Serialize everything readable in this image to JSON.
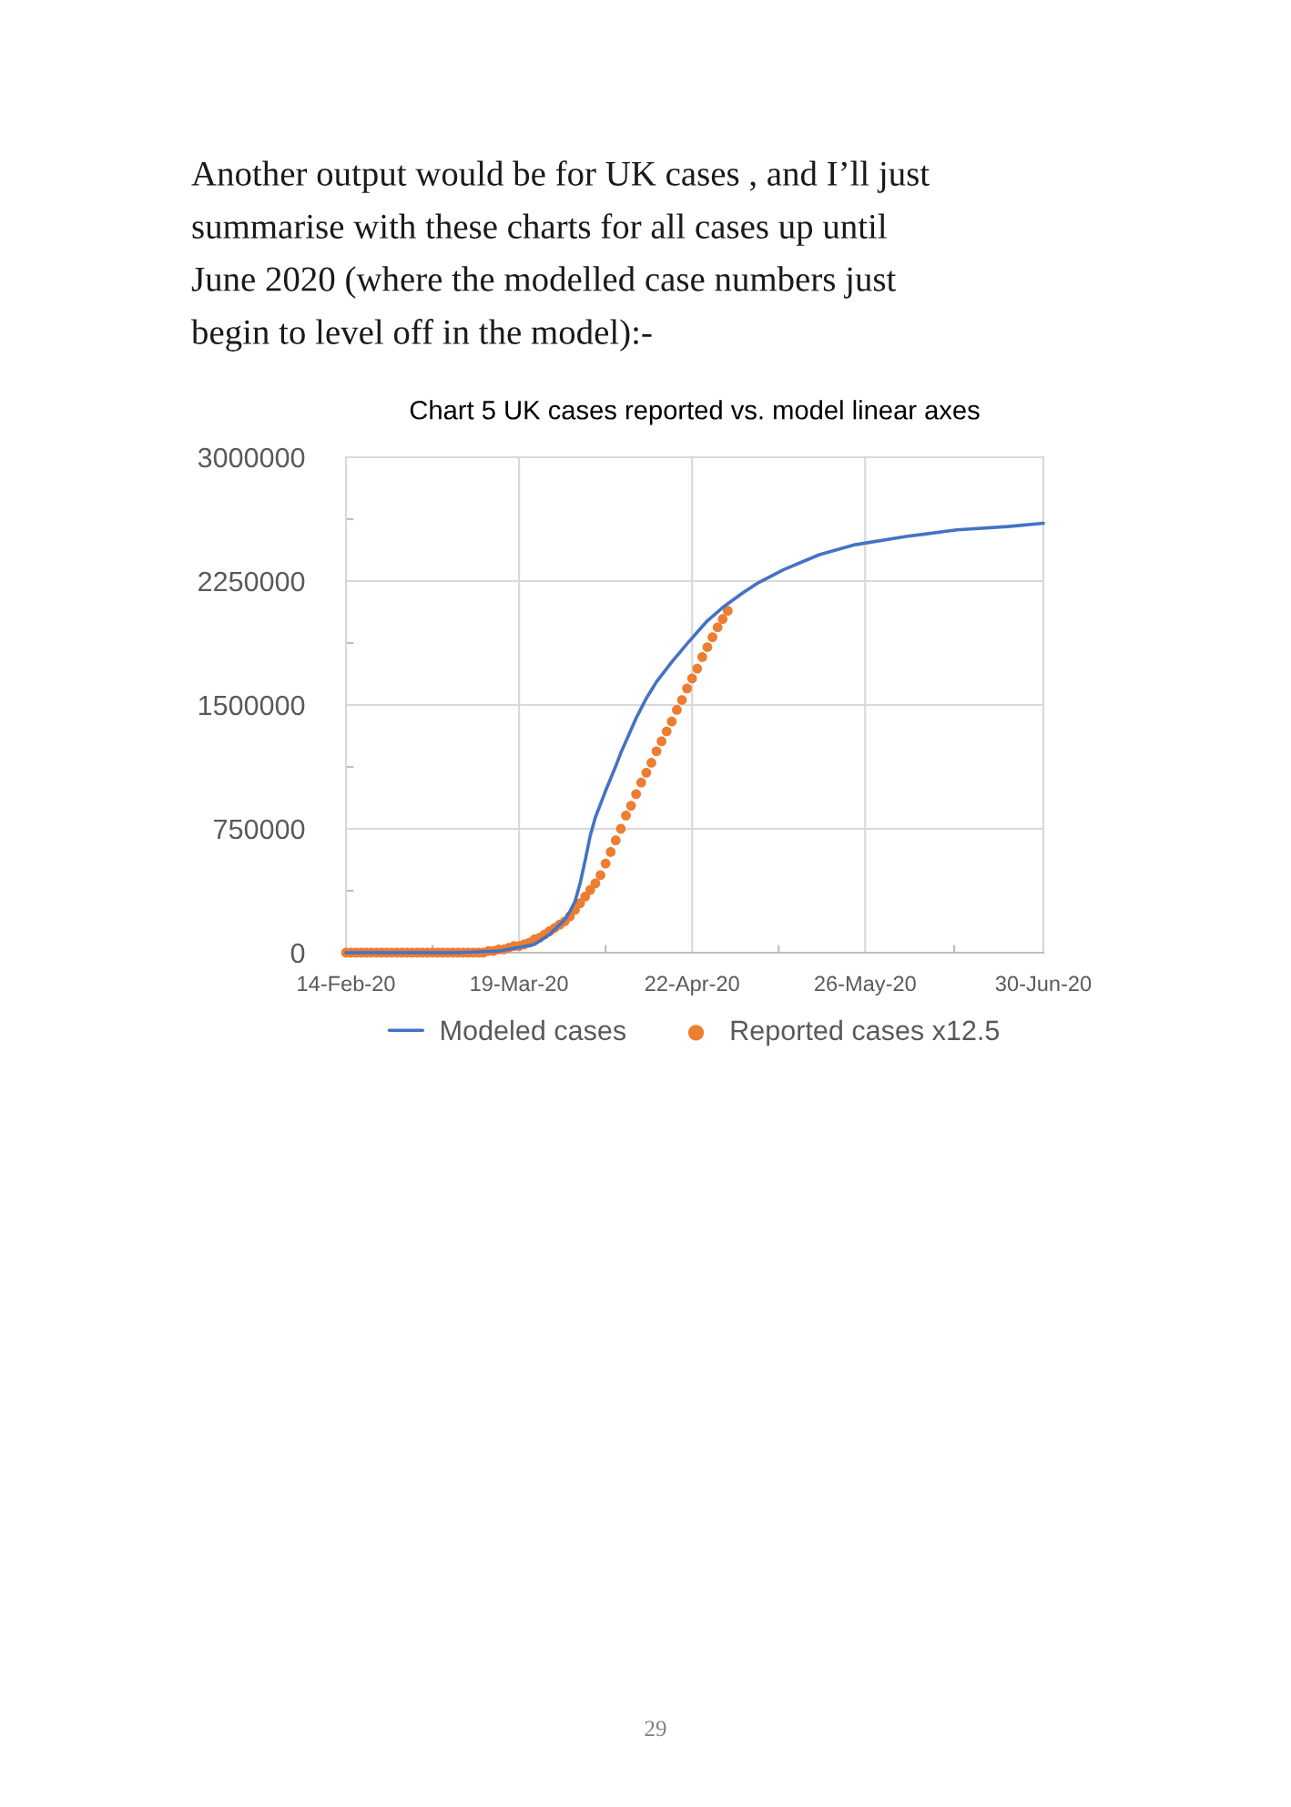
{
  "chart_data": {
    "type": "line",
    "title": "Chart 5 UK cases reported vs. model linear axes",
    "annotations": [
      "Another output would be for UK cases , and I’ll just",
      "summarise with these charts for all cases up until",
      "June 2020 (where the modelled case numbers just",
      "begin to level off in the model):-",
      "29"
    ],
    "xlim": [
      "2020-02-14",
      "2020-06-30"
    ],
    "xticks": [
      {
        "value": "2020-02-14",
        "label": "14-Feb-20"
      },
      {
        "value": "2020-03-19",
        "label": "19-Mar-20"
      },
      {
        "value": "2020-04-22",
        "label": "22-Apr-20"
      },
      {
        "value": "2020-05-26",
        "label": "26-May-20"
      },
      {
        "value": "2020-06-30",
        "label": "30-Jun-20"
      }
    ],
    "ylim": [
      0,
      3000000
    ],
    "yticks": [
      0,
      750000,
      1500000,
      2250000,
      3000000
    ],
    "grid": true,
    "legend": "bottom",
    "line_style": "solid",
    "series": [
      {
        "name": "Modeled cases",
        "color": "#4472c4",
        "x": [
          "2020-02-14",
          "2020-03-07",
          "2020-03-15",
          "2020-03-22",
          "2020-03-25",
          "2020-03-28",
          "2020-03-29",
          "2020-03-30",
          "2020-03-31",
          "2020-04-01",
          "2020-04-02",
          "2020-04-03",
          "2020-04-04",
          "2020-04-05",
          "2020-04-07",
          "2020-04-08",
          "2020-04-09",
          "2020-04-10",
          "2020-04-11",
          "2020-04-12",
          "2020-04-13",
          "2020-04-14",
          "2020-04-15",
          "2020-04-16",
          "2020-04-18",
          "2020-04-21",
          "2020-04-25",
          "2020-04-28",
          "2020-05-02",
          "2020-05-05",
          "2020-05-10",
          "2020-05-17",
          "2020-05-24",
          "2020-06-03",
          "2020-06-13",
          "2020-06-23",
          "2020-06-30"
        ],
        "values": [
          0,
          0,
          10000,
          50000,
          110000,
          200000,
          250000,
          310000,
          420000,
          560000,
          710000,
          820000,
          900000,
          980000,
          1130000,
          1210000,
          1280000,
          1350000,
          1420000,
          1480000,
          1540000,
          1590000,
          1640000,
          1680000,
          1760000,
          1870000,
          2010000,
          2090000,
          2180000,
          2240000,
          2320000,
          2410000,
          2470000,
          2520000,
          2560000,
          2580000,
          2600000
        ]
      },
      {
        "name": "Reported cases x12.5",
        "type": "scatter",
        "color": "#ed7d31",
        "marker": "circle",
        "x": [
          "2020-02-14",
          "2020-02-15",
          "2020-02-16",
          "2020-02-17",
          "2020-02-18",
          "2020-02-19",
          "2020-02-20",
          "2020-02-21",
          "2020-02-22",
          "2020-02-23",
          "2020-02-24",
          "2020-02-25",
          "2020-02-26",
          "2020-02-27",
          "2020-02-28",
          "2020-02-29",
          "2020-03-01",
          "2020-03-02",
          "2020-03-03",
          "2020-03-04",
          "2020-03-05",
          "2020-03-06",
          "2020-03-07",
          "2020-03-08",
          "2020-03-09",
          "2020-03-10",
          "2020-03-11",
          "2020-03-12",
          "2020-03-13",
          "2020-03-14",
          "2020-03-15",
          "2020-03-16",
          "2020-03-17",
          "2020-03-18",
          "2020-03-19",
          "2020-03-20",
          "2020-03-21",
          "2020-03-22",
          "2020-03-23",
          "2020-03-24",
          "2020-03-25",
          "2020-03-26",
          "2020-03-27",
          "2020-03-28",
          "2020-03-29",
          "2020-03-30",
          "2020-03-31",
          "2020-04-01",
          "2020-04-02",
          "2020-04-03",
          "2020-04-04",
          "2020-04-05",
          "2020-04-06",
          "2020-04-07",
          "2020-04-08",
          "2020-04-09",
          "2020-04-10",
          "2020-04-11",
          "2020-04-12",
          "2020-04-13",
          "2020-04-14",
          "2020-04-15",
          "2020-04-16",
          "2020-04-17",
          "2020-04-18",
          "2020-04-19",
          "2020-04-20",
          "2020-04-21",
          "2020-04-22",
          "2020-04-23",
          "2020-04-24",
          "2020-04-25",
          "2020-04-26",
          "2020-04-27",
          "2020-04-28",
          "2020-04-29"
        ],
        "values": [
          0,
          0,
          0,
          0,
          0,
          0,
          0,
          0,
          0,
          0,
          0,
          0,
          0,
          0,
          0,
          0,
          0,
          0,
          0,
          0,
          0,
          0,
          0,
          0,
          0,
          0,
          0,
          0,
          10000,
          10000,
          20000,
          20000,
          30000,
          40000,
          40000,
          50000,
          60000,
          80000,
          90000,
          110000,
          130000,
          150000,
          170000,
          190000,
          220000,
          260000,
          300000,
          340000,
          380000,
          420000,
          470000,
          540000,
          610000,
          680000,
          750000,
          830000,
          890000,
          960000,
          1030000,
          1090000,
          1150000,
          1220000,
          1280000,
          1340000,
          1400000,
          1470000,
          1530000,
          1600000,
          1660000,
          1720000,
          1790000,
          1850000,
          1910000,
          1970000,
          2020000,
          2070000
        ]
      }
    ]
  }
}
